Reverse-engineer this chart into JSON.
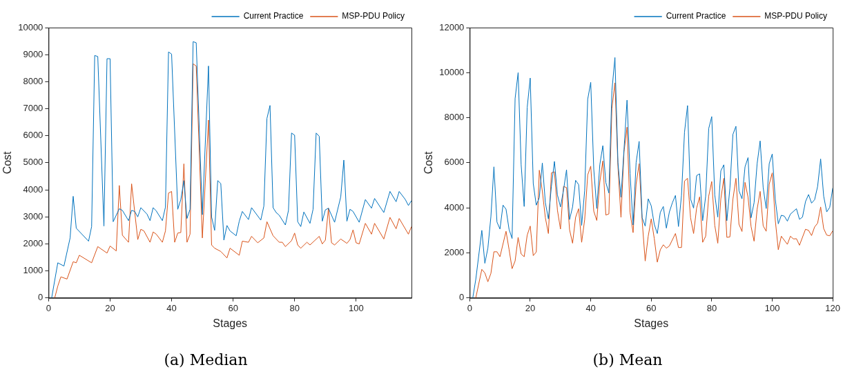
{
  "chart_data": [
    {
      "type": "line",
      "title": "(a) Median",
      "xlabel": "Stages",
      "ylabel": "Cost",
      "xlim": [
        0,
        118
      ],
      "xticks": [
        0,
        20,
        40,
        60,
        80,
        100
      ],
      "ylim": [
        0,
        10000
      ],
      "yticks": [
        0,
        1000,
        2000,
        3000,
        4000,
        5000,
        6000,
        7000,
        8000,
        9000,
        10000
      ],
      "grid": false,
      "legend": "top right",
      "series": [
        {
          "name": "Current Practice",
          "color": "#0072bd",
          "x": [
            1,
            3,
            5,
            7,
            8,
            9,
            13,
            14,
            15,
            16,
            18,
            19,
            20,
            21,
            23,
            24,
            26,
            27,
            28,
            29,
            30,
            32,
            33,
            34,
            35,
            37,
            38,
            39,
            40,
            42,
            43,
            44,
            45,
            46,
            47,
            48,
            50,
            51,
            52,
            53,
            54,
            55,
            56,
            57,
            58,
            59,
            61,
            62,
            63,
            65,
            66,
            69,
            70,
            71,
            72,
            73,
            74,
            75,
            77,
            78,
            79,
            80,
            81,
            82,
            83,
            85,
            86,
            87,
            88,
            89,
            90,
            91,
            93,
            95,
            96,
            97,
            98,
            99,
            101,
            103,
            105,
            106,
            109,
            111,
            113,
            114,
            116,
            117,
            118
          ],
          "values": [
            0,
            1300,
            1180,
            2220,
            3760,
            2580,
            2100,
            2640,
            8970,
            8930,
            2660,
            8850,
            8850,
            2820,
            3300,
            3240,
            2860,
            3240,
            3200,
            3000,
            3340,
            3100,
            2860,
            3340,
            3220,
            2860,
            3360,
            9100,
            9020,
            3280,
            3640,
            4340,
            2940,
            3280,
            9480,
            9440,
            3080,
            5840,
            8580,
            3000,
            2500,
            4340,
            4230,
            2140,
            2680,
            2480,
            2300,
            2840,
            3200,
            2900,
            3340,
            2880,
            3400,
            6640,
            7120,
            3340,
            3160,
            3060,
            2700,
            3240,
            6100,
            6020,
            2820,
            2640,
            3180,
            2760,
            3280,
            6100,
            5980,
            2840,
            3260,
            3320,
            2800,
            3740,
            5100,
            2840,
            3280,
            3200,
            2800,
            3640,
            3320,
            3680,
            3160,
            3940,
            3560,
            3940,
            3640,
            3420,
            3600
          ]
        },
        {
          "name": "MSP-PDU Policy",
          "color": "#d95319",
          "x": [
            2,
            3,
            4,
            6,
            8,
            9,
            10,
            14,
            16,
            19,
            20,
            22,
            23,
            24,
            26,
            27,
            29,
            30,
            31,
            33,
            34,
            35,
            37,
            38,
            39,
            40,
            41,
            42,
            43,
            44,
            45,
            46,
            47,
            48,
            50,
            52,
            53,
            54,
            56,
            58,
            59,
            62,
            63,
            65,
            66,
            68,
            70,
            71,
            73,
            75,
            76,
            77,
            79,
            80,
            81,
            82,
            84,
            85,
            88,
            89,
            90,
            91,
            92,
            93,
            95,
            97,
            98,
            99,
            100,
            101,
            103,
            105,
            106,
            109,
            111,
            113,
            114,
            117,
            118
          ],
          "values": [
            0,
            440,
            780,
            700,
            1340,
            1300,
            1580,
            1300,
            1900,
            1660,
            1920,
            1740,
            4160,
            2320,
            2060,
            4220,
            2160,
            2540,
            2480,
            2060,
            2440,
            2360,
            2060,
            2480,
            3880,
            3940,
            2060,
            2400,
            2420,
            4960,
            2060,
            2360,
            8660,
            8580,
            2220,
            6580,
            1960,
            1840,
            1720,
            1480,
            1840,
            1580,
            2100,
            2060,
            2280,
            2040,
            2220,
            2820,
            2300,
            2060,
            2060,
            1900,
            2120,
            2400,
            1960,
            1840,
            2060,
            1960,
            2280,
            2000,
            2140,
            3320,
            2040,
            1960,
            2180,
            2020,
            2160,
            2520,
            2040,
            2000,
            2760,
            2360,
            2760,
            2180,
            2980,
            2560,
            2940,
            2360,
            2640
          ]
        }
      ]
    },
    {
      "type": "line",
      "title": "(b) Mean",
      "xlabel": "Stages",
      "ylabel": "Cost",
      "xlim": [
        0,
        120
      ],
      "xticks": [
        0,
        20,
        40,
        60,
        80,
        100,
        120
      ],
      "ylim": [
        0,
        12000
      ],
      "yticks": [
        0,
        2000,
        4000,
        6000,
        8000,
        10000,
        12000
      ],
      "grid": false,
      "legend": "top right",
      "series": [
        {
          "name": "Current Practice",
          "color": "#0072bd",
          "x": [
            1,
            2,
            4,
            5,
            6,
            7,
            8,
            9,
            10,
            11,
            12,
            13,
            14,
            15,
            16,
            17,
            18,
            19,
            20,
            21,
            22,
            23,
            24,
            25,
            26,
            27,
            28,
            29,
            30,
            31,
            32,
            33,
            34,
            35,
            36,
            37,
            38,
            39,
            40,
            41,
            42,
            43,
            44,
            45,
            46,
            47,
            48,
            49,
            50,
            51,
            52,
            53,
            54,
            55,
            56,
            57,
            58,
            59,
            60,
            61,
            62,
            63,
            64,
            65,
            66,
            67,
            68,
            69,
            70,
            71,
            72,
            73,
            74,
            75,
            76,
            77,
            78,
            79,
            80,
            81,
            82,
            83,
            84,
            85,
            86,
            87,
            88,
            89,
            90,
            91,
            92,
            93,
            94,
            95,
            96,
            97,
            98,
            99,
            100,
            101,
            102,
            103,
            104,
            105,
            106,
            108,
            109,
            110,
            111,
            112,
            113,
            114,
            115,
            116,
            117,
            118,
            119,
            120
          ],
          "values": [
            0,
            820,
            3000,
            1540,
            2210,
            3610,
            5820,
            3370,
            3060,
            4120,
            3940,
            3050,
            2640,
            8850,
            10000,
            5910,
            4060,
            8460,
            9760,
            5080,
            4120,
            4450,
            5990,
            4230,
            3510,
            4950,
            6060,
            4570,
            4040,
            4780,
            5690,
            3480,
            4040,
            5220,
            5030,
            3220,
            4760,
            8820,
            9570,
            5720,
            3970,
            5910,
            6760,
            5120,
            4660,
            9200,
            10670,
            6010,
            4470,
            6590,
            8780,
            5530,
            3240,
            6010,
            6950,
            3560,
            3190,
            4400,
            4090,
            3270,
            2860,
            3800,
            4060,
            3100,
            3820,
            4230,
            4550,
            3170,
            4550,
            7360,
            8540,
            4390,
            3990,
            5430,
            5510,
            3430,
            4520,
            7520,
            8050,
            4570,
            3590,
            5640,
            5910,
            3430,
            4880,
            7260,
            7620,
            4760,
            4400,
            5820,
            6230,
            3560,
            4230,
            5960,
            6970,
            4900,
            3970,
            5960,
            6390,
            4380,
            3290,
            3670,
            3630,
            3410,
            3720,
            3960,
            3490,
            3590,
            4280,
            4590,
            4210,
            4360,
            4950,
            6170,
            4520,
            3820,
            4020,
            4880
          ]
        },
        {
          "name": "MSP-PDU Policy",
          "color": "#d95319",
          "x": [
            2,
            4,
            5,
            6,
            7,
            8,
            9,
            10,
            12,
            13,
            14,
            15,
            16,
            17,
            18,
            19,
            20,
            21,
            22,
            23,
            24,
            25,
            26,
            27,
            28,
            29,
            30,
            31,
            32,
            33,
            34,
            35,
            36,
            37,
            38,
            39,
            40,
            41,
            42,
            43,
            44,
            45,
            46,
            47,
            48,
            49,
            50,
            51,
            52,
            53,
            54,
            55,
            56,
            57,
            58,
            59,
            60,
            61,
            62,
            63,
            64,
            65,
            66,
            68,
            69,
            70,
            71,
            72,
            73,
            74,
            75,
            76,
            77,
            78,
            79,
            80,
            81,
            82,
            83,
            84,
            85,
            86,
            87,
            88,
            89,
            90,
            91,
            92,
            93,
            94,
            95,
            96,
            97,
            98,
            99,
            100,
            101,
            102,
            103,
            105,
            106,
            107,
            108,
            109,
            111,
            112,
            113,
            114,
            115,
            116,
            117,
            118,
            119,
            120
          ],
          "values": [
            0,
            1270,
            1110,
            720,
            1090,
            2050,
            2050,
            1830,
            2960,
            2160,
            1300,
            1640,
            2690,
            1950,
            1830,
            2790,
            3190,
            1880,
            2040,
            5670,
            4740,
            3560,
            2860,
            5550,
            5600,
            3890,
            3060,
            4950,
            4900,
            3030,
            2430,
            3580,
            3960,
            2470,
            3480,
            5460,
            5850,
            3850,
            3440,
            5140,
            6080,
            3680,
            3730,
            8410,
            9550,
            5820,
            3580,
            6490,
            7580,
            3800,
            2900,
            5050,
            5960,
            3430,
            1640,
            2740,
            3510,
            2640,
            1590,
            2140,
            2360,
            2210,
            2310,
            2860,
            2240,
            2240,
            5190,
            5310,
            3560,
            2860,
            3990,
            4490,
            2470,
            2740,
            4520,
            5170,
            3220,
            2430,
            4400,
            5310,
            2690,
            2710,
            4380,
            5310,
            3270,
            2950,
            5130,
            4470,
            3170,
            2520,
            3940,
            4730,
            3200,
            2960,
            5050,
            5550,
            3460,
            2140,
            2740,
            2380,
            2740,
            2620,
            2630,
            2340,
            3050,
            3000,
            2770,
            3150,
            3320,
            4040,
            3080,
            2790,
            2760,
            2980
          ]
        }
      ]
    }
  ]
}
